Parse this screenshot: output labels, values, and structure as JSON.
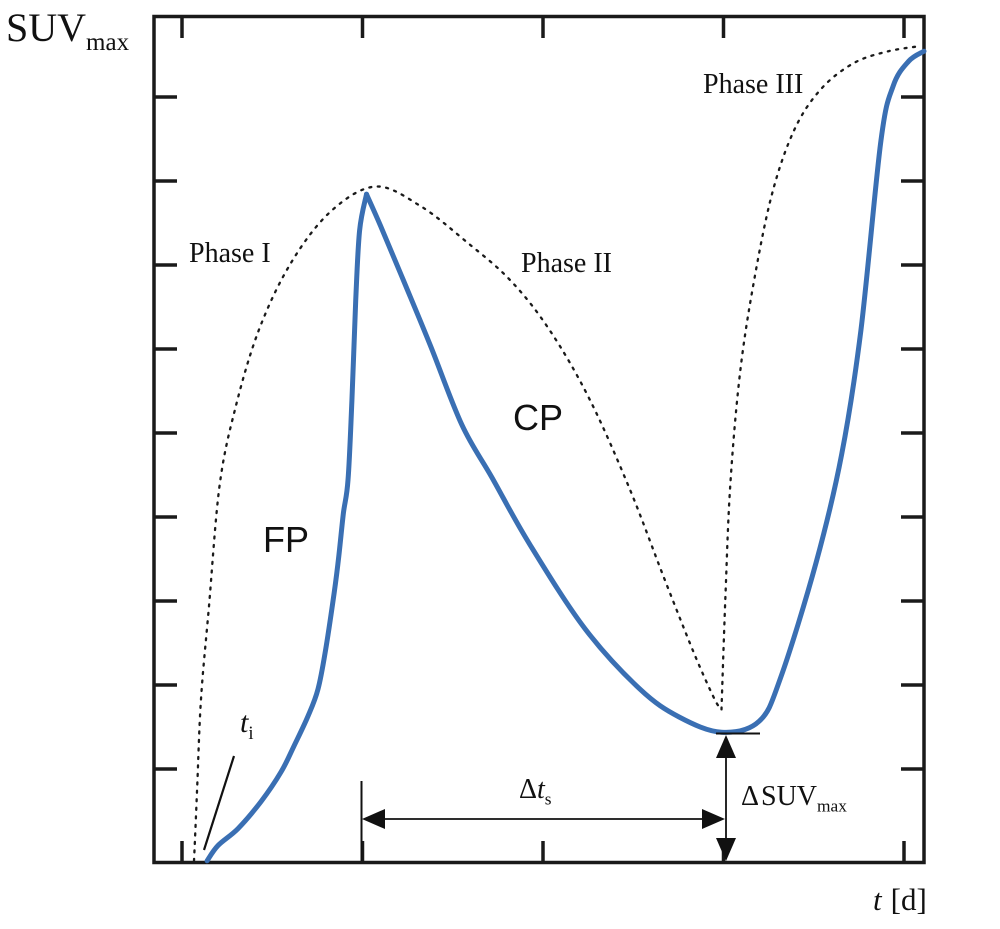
{
  "figure": {
    "y_axis_label": {
      "main": "SUV",
      "sub": "max"
    },
    "x_axis_label": {
      "var": "t",
      "unit": "[d]"
    },
    "phases": {
      "phase1": "Phase I",
      "phase2": "Phase II",
      "phase3": "Phase III"
    },
    "curve_labels": {
      "fp": "FP",
      "cp": "CP"
    },
    "annotations": {
      "t_i": {
        "var": "t",
        "sub": "i"
      },
      "delta_t_s": {
        "delta": "Δ",
        "var": "t",
        "sub": "s"
      },
      "delta_suv_max": {
        "delta": "Δ",
        "main": "SUV",
        "sub": "max"
      }
    },
    "colors": {
      "solid_curve": "#3a6fb3",
      "dotted_curve": "#1a1a1a",
      "frame": "#1a1a1a",
      "text": "#111111"
    }
  },
  "chart_data": {
    "type": "line",
    "title": "",
    "xlabel": "t [d]",
    "ylabel": "SUVmax",
    "axes_numeric_labels": false,
    "x_ticks_count": 5,
    "y_ticks_count": 9,
    "xlim": [
      0,
      10
    ],
    "ylim": [
      0,
      10
    ],
    "grid": false,
    "legend": "none",
    "series": [
      {
        "name": "SUVmax time course (solid)",
        "style": "solid",
        "color": "#3a6fb3",
        "segments": [
          [
            [
              0.69,
              0.02
            ],
            [
              0.83,
              0.2
            ],
            [
              1.09,
              0.4
            ],
            [
              1.39,
              0.72
            ],
            [
              1.65,
              1.07
            ],
            [
              1.82,
              1.38
            ],
            [
              2.0,
              1.73
            ],
            [
              2.13,
              2.05
            ],
            [
              2.23,
              2.52
            ],
            [
              2.34,
              3.19
            ],
            [
              2.4,
              3.62
            ],
            [
              2.46,
              4.13
            ],
            [
              2.52,
              4.52
            ],
            [
              2.57,
              5.46
            ],
            [
              2.62,
              6.64
            ],
            [
              2.67,
              7.47
            ],
            [
              2.76,
              7.9
            ]
          ],
          [
            [
              2.76,
              7.9
            ],
            [
              2.94,
              7.53
            ],
            [
              3.24,
              6.88
            ],
            [
              3.59,
              6.11
            ],
            [
              4.0,
              5.17
            ],
            [
              4.39,
              4.55
            ],
            [
              4.88,
              3.76
            ],
            [
              5.6,
              2.76
            ],
            [
              6.31,
              2.05
            ],
            [
              6.82,
              1.72
            ],
            [
              7.37,
              1.54
            ],
            [
              7.86,
              1.67
            ],
            [
              8.14,
              2.19
            ],
            [
              8.6,
              3.55
            ],
            [
              8.93,
              4.82
            ],
            [
              9.18,
              6.29
            ],
            [
              9.44,
              8.53
            ],
            [
              9.6,
              9.18
            ],
            [
              9.8,
              9.47
            ],
            [
              10.0,
              9.59
            ]
          ]
        ]
      },
      {
        "name": "phase envelope (dotted)",
        "style": "dotted",
        "color": "#1a1a1a",
        "segments": [
          [
            [
              0.52,
              0.02
            ],
            [
              0.56,
              0.87
            ],
            [
              0.61,
              1.93
            ],
            [
              0.71,
              2.99
            ],
            [
              0.85,
              4.44
            ],
            [
              1.05,
              5.35
            ],
            [
              1.36,
              6.29
            ],
            [
              1.78,
              7.09
            ],
            [
              2.3,
              7.7
            ],
            [
              2.88,
              7.99
            ],
            [
              3.46,
              7.76
            ],
            [
              4.04,
              7.35
            ],
            [
              4.63,
              6.88
            ],
            [
              5.14,
              6.29
            ],
            [
              5.66,
              5.47
            ],
            [
              6.18,
              4.41
            ],
            [
              6.63,
              3.35
            ],
            [
              7.02,
              2.46
            ],
            [
              7.28,
              1.93
            ],
            [
              7.37,
              1.81
            ]
          ],
          [
            [
              7.37,
              1.81
            ],
            [
              7.42,
              3.11
            ],
            [
              7.48,
              4.41
            ],
            [
              7.6,
              5.7
            ],
            [
              7.77,
              6.76
            ],
            [
              8.02,
              7.88
            ],
            [
              8.31,
              8.65
            ],
            [
              8.66,
              9.14
            ],
            [
              9.09,
              9.45
            ],
            [
              9.54,
              9.59
            ],
            [
              9.95,
              9.65
            ]
          ]
        ]
      }
    ],
    "annotations": [
      {
        "label": "t_i",
        "type": "pointer",
        "x": 0.66,
        "y": 0.0
      },
      {
        "label": "Δt_s",
        "type": "horizontal-span",
        "from_x": 2.7,
        "to_x": 7.4,
        "y": 0.53
      },
      {
        "label": "ΔSUV_max",
        "type": "vertical-span",
        "x": 7.42,
        "from_y": 0.0,
        "to_y": 1.53
      },
      {
        "label": "FP",
        "x": 1.55,
        "y": 3.75
      },
      {
        "label": "CP",
        "x": 4.85,
        "y": 5.3
      },
      {
        "label": "Phase I",
        "x": 1.1,
        "y": 7.15
      },
      {
        "label": "Phase II",
        "x": 5.55,
        "y": 6.95
      },
      {
        "label": "Phase III",
        "x": 7.95,
        "y": 9.25
      }
    ]
  }
}
